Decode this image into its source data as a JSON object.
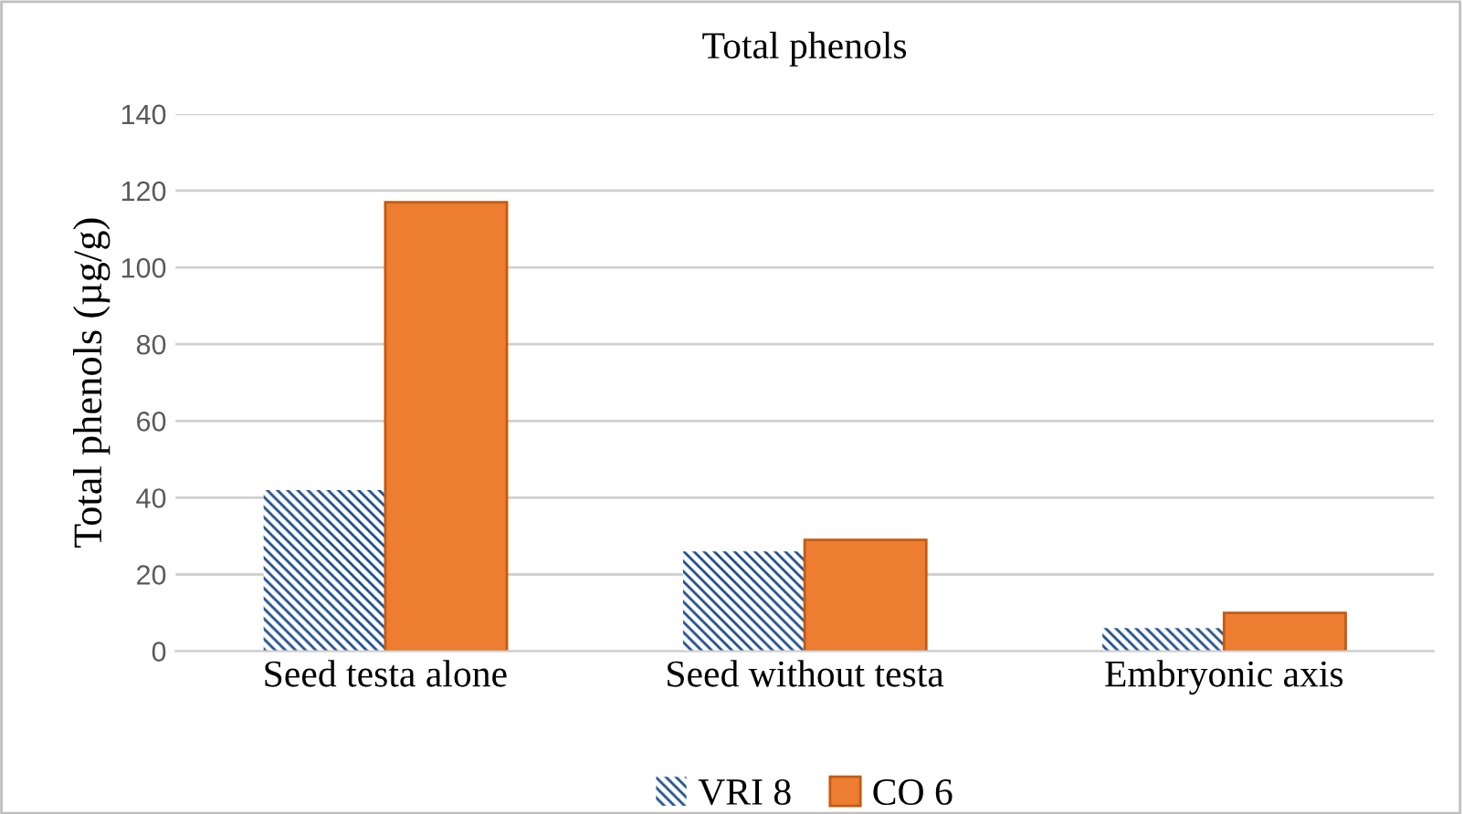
{
  "chart_data": {
    "type": "bar",
    "title": "Total phenols",
    "ylabel": "Total phenols (µg/g)",
    "categories": [
      "Seed testa alone",
      "Seed without testa",
      "Embryonic axis"
    ],
    "series": [
      {
        "name": "VRI 8",
        "color": "#1f4e8c",
        "values": [
          42,
          26,
          6
        ]
      },
      {
        "name": "CO 6",
        "color": "#ed7d31",
        "values": [
          117,
          29,
          10
        ]
      }
    ],
    "ylim": [
      0,
      140
    ],
    "yticks": [
      0,
      20,
      40,
      60,
      80,
      100,
      120,
      140
    ],
    "grid": "y",
    "legend": "bottom"
  }
}
